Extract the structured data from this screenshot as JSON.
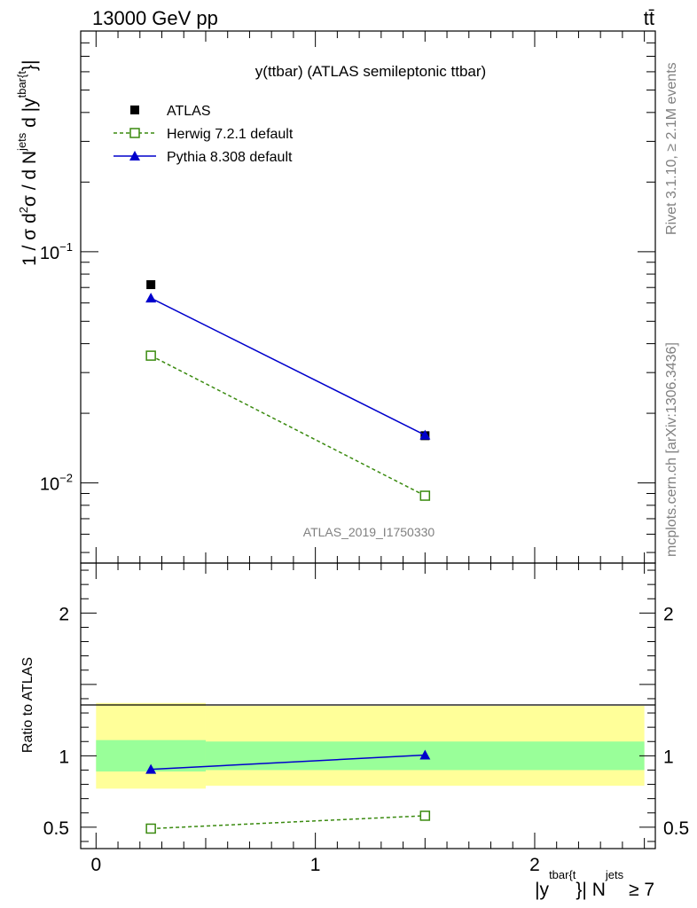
{
  "header": {
    "energy_label": "13000 GeV pp",
    "process_label": "tt̄"
  },
  "side_labels": {
    "rivet": "Rivet 3.1.10, ≥ 2.1M events",
    "source": "mcplots.cern.ch [arXiv:1306.3436]"
  },
  "chart_data": [
    {
      "type": "scatter",
      "title": "y(ttbar) (ATLAS semileptonic ttbar)",
      "watermark": "ATLAS_2019_I1750330",
      "ylabel": "1 / σ d²σ / d N^jets d |y^tbar{t}|",
      "yscale": "log",
      "ylim": [
        0.0045,
        0.9
      ],
      "xlim": [
        -0.07,
        2.55
      ],
      "y_ticks": [
        {
          "value": 0.1,
          "mantissa": "10",
          "exp": "−1"
        },
        {
          "value": 0.01,
          "mantissa": "10",
          "exp": "−2"
        }
      ],
      "legend": {
        "position": "top-left"
      },
      "series": [
        {
          "name": "ATLAS",
          "color": "#000000",
          "marker": "filled-square",
          "line": "none",
          "x": [
            0.25,
            1.5
          ],
          "y": [
            0.072,
            0.016
          ]
        },
        {
          "name": "Herwig 7.2.1 default",
          "color": "#3a8a0f",
          "marker": "open-square",
          "line": "dashed",
          "x": [
            0.25,
            1.5
          ],
          "y": [
            0.0355,
            0.0088
          ]
        },
        {
          "name": "Pythia 8.308 default",
          "color": "#0000cc",
          "marker": "filled-triangle",
          "line": "solid",
          "x": [
            0.25,
            1.5
          ],
          "y": [
            0.063,
            0.0161
          ]
        }
      ]
    },
    {
      "type": "line",
      "ylabel": "Ratio to ATLAS",
      "xlabel": "|y^tbar{t}| N^jets ≥ 7",
      "ylim": [
        0.35,
        2.35
      ],
      "xlim": [
        -0.07,
        2.55
      ],
      "y_ticks": [
        "0.5",
        "1",
        "2"
      ],
      "x_ticks": [
        "0",
        "1",
        "2"
      ],
      "bands": [
        {
          "x_range": [
            0,
            0.5
          ],
          "stat": [
            0.89,
            1.11
          ],
          "total": [
            0.77,
            1.37
          ]
        },
        {
          "x_range": [
            0.5,
            2.5
          ],
          "stat": [
            0.9,
            1.1
          ],
          "total": [
            0.79,
            1.35
          ]
        }
      ],
      "band_colors": {
        "stat": "#99ff99",
        "total": "#ffff99"
      },
      "series": [
        {
          "name": "Herwig 7.2.1 default",
          "color": "#3a8a0f",
          "x": [
            0.25,
            1.5
          ],
          "y": [
            0.49,
            0.58
          ]
        },
        {
          "name": "Pythia 8.308 default",
          "color": "#0000cc",
          "x": [
            0.25,
            1.5
          ],
          "y": [
            0.905,
            1.005
          ]
        }
      ]
    }
  ]
}
